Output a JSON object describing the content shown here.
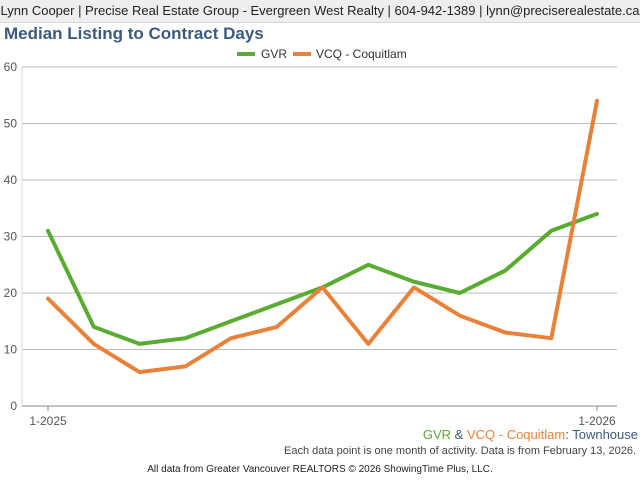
{
  "header": {
    "contact": "Lynn Cooper | Precise Real Estate Group - Evergreen West Realty | 604-942-1389 | lynn@preciserealestate.ca"
  },
  "chart_data": {
    "type": "line",
    "title": "Median Listing to Contract Days",
    "xlabel": "",
    "ylabel": "",
    "ylim": [
      0,
      60
    ],
    "yticks": [
      0,
      10,
      20,
      30,
      40,
      50,
      60
    ],
    "grid": true,
    "legend_position": "top-center",
    "categories": [
      "1-2025",
      "2-2025",
      "3-2025",
      "4-2025",
      "5-2025",
      "6-2025",
      "7-2025",
      "8-2025",
      "9-2025",
      "10-2025",
      "11-2025",
      "12-2025",
      "1-2026"
    ],
    "x_tick_labels": [
      "1-2025",
      "1-2026"
    ],
    "series": [
      {
        "name": "GVR",
        "color": "#5aab32",
        "values": [
          31,
          14,
          11,
          12,
          15,
          18,
          21,
          25,
          22,
          20,
          24,
          31,
          34
        ]
      },
      {
        "name": "VCQ - Coquitlam",
        "color": "#e8823a",
        "values": [
          19,
          11,
          6,
          7,
          12,
          14,
          21,
          11,
          21,
          16,
          13,
          12,
          54
        ]
      }
    ]
  },
  "subtitle": {
    "gvr": "GVR",
    "amp": " & ",
    "vcq": "VCQ - Coquitlam",
    "colon": ": ",
    "property_type": "Townhouse"
  },
  "note": "Each data point is one month of activity. Data is from February 13, 2026.",
  "footer": "All data from Greater Vancouver REALTORS © 2026 ShowingTime Plus, LLC."
}
